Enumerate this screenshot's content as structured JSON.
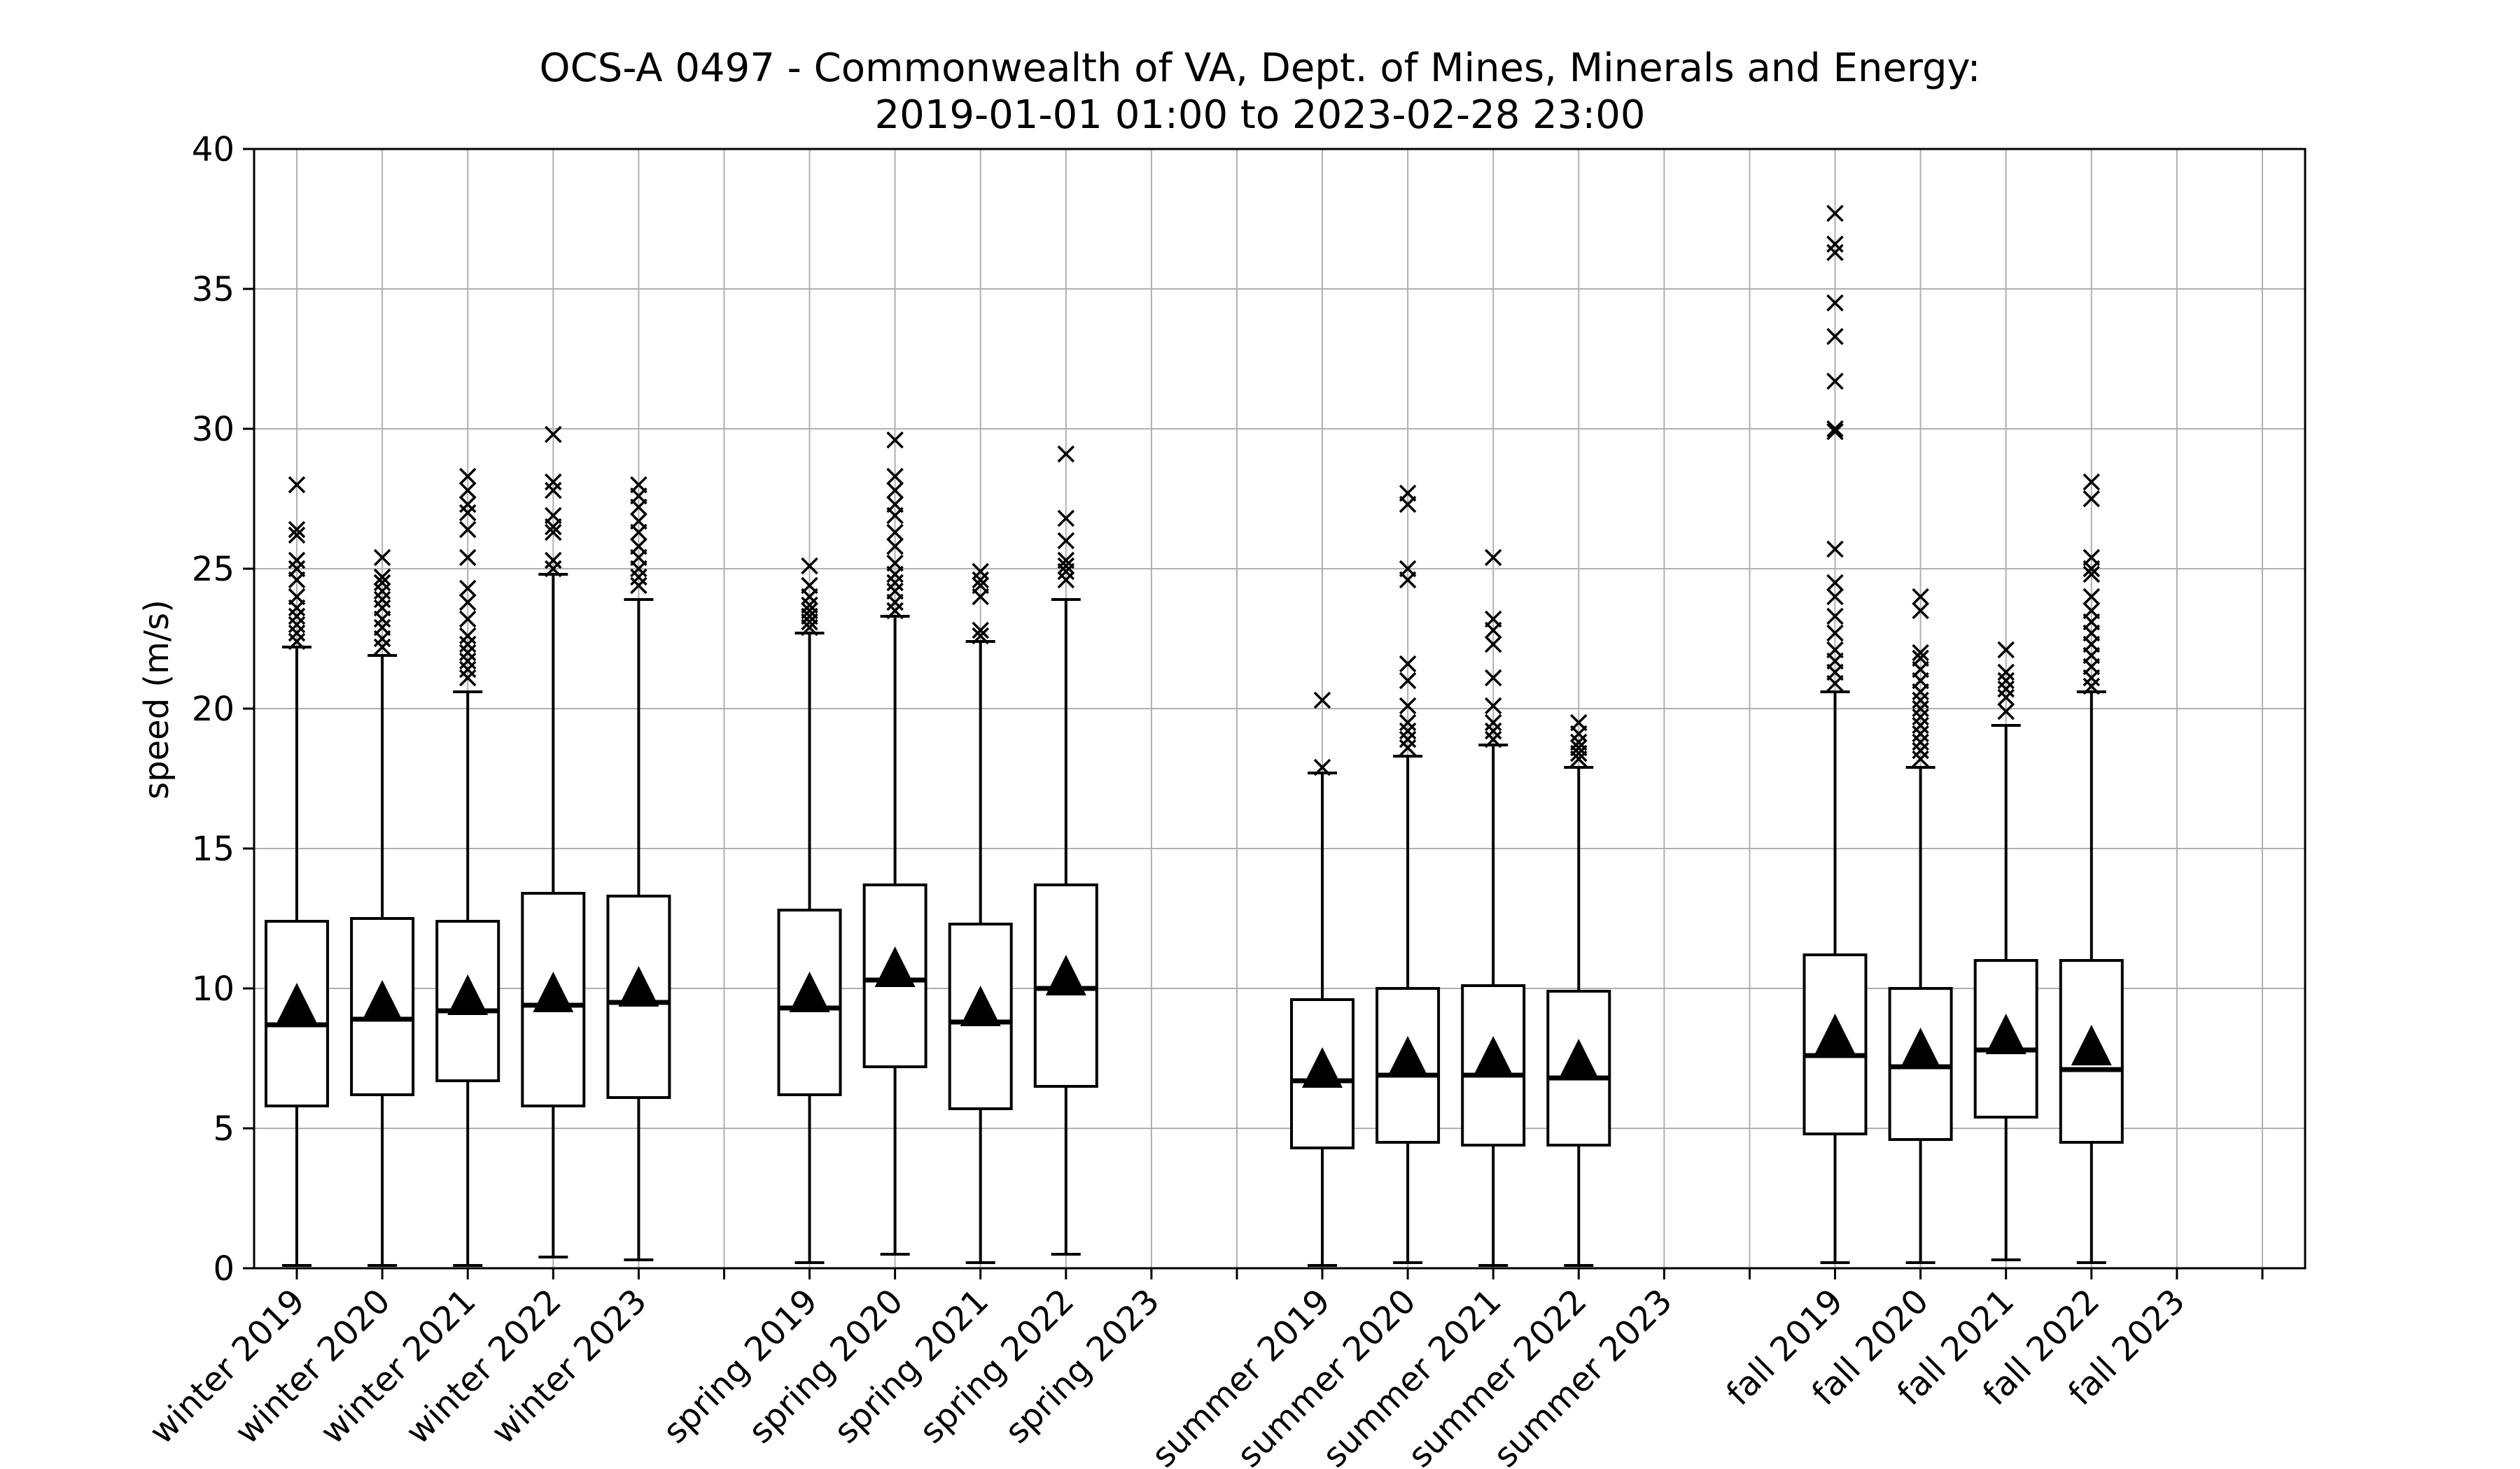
{
  "chart_data": {
    "type": "box",
    "title": "OCS-A 0497 - Commonwealth of VA, Dept. of Mines, Minerals and Energy:",
    "subtitle": "2019-01-01 01:00 to 2023-02-28 23:00",
    "xlabel": "",
    "ylabel": "speed (m/s)",
    "ylim": [
      0,
      40
    ],
    "yticks": [
      0,
      5,
      10,
      15,
      20,
      25,
      30,
      35,
      40
    ],
    "grid": true,
    "categories": [
      "winter 2019",
      "winter 2020",
      "winter 2021",
      "winter 2022",
      "winter 2023",
      "",
      "spring 2019",
      "spring 2020",
      "spring 2021",
      "spring 2022",
      "spring 2023",
      "",
      "summer 2019",
      "summer 2020",
      "summer 2021",
      "summer 2022",
      "summer 2023",
      "",
      "fall 2019",
      "fall 2020",
      "fall 2021",
      "fall 2022",
      "fall 2023",
      ""
    ],
    "boxes": [
      {
        "label": "winter 2019",
        "whisker_low": 0.1,
        "q1": 5.8,
        "median": 8.7,
        "q3": 12.4,
        "whisker_high": 22.2,
        "mean": 9.3,
        "outliers": [
          22.4,
          22.7,
          23.0,
          23.3,
          23.6,
          24.0,
          24.6,
          25.0,
          25.3,
          26.2,
          26.4,
          28.0
        ]
      },
      {
        "label": "winter 2020",
        "whisker_low": 0.1,
        "q1": 6.2,
        "median": 8.9,
        "q3": 12.5,
        "whisker_high": 21.9,
        "mean": 9.4,
        "outliers": [
          22.2,
          22.5,
          22.9,
          23.2,
          23.6,
          23.9,
          24.2,
          24.5,
          24.7,
          25.4
        ]
      },
      {
        "label": "winter 2021",
        "whisker_low": 0.1,
        "q1": 6.7,
        "median": 9.2,
        "q3": 12.4,
        "whisker_high": 20.6,
        "mean": 9.6,
        "outliers": [
          21.1,
          21.4,
          21.7,
          22.0,
          22.3,
          22.6,
          23.2,
          23.8,
          24.3,
          25.4,
          26.4,
          27.0,
          27.3,
          27.8,
          28.3
        ]
      },
      {
        "label": "winter 2022",
        "whisker_low": 0.4,
        "q1": 5.8,
        "median": 9.4,
        "q3": 13.4,
        "whisker_high": 24.8,
        "mean": 9.7,
        "outliers": [
          25.0,
          25.3,
          26.3,
          26.5,
          26.9,
          27.8,
          28.1,
          29.8
        ]
      },
      {
        "label": "winter 2023",
        "whisker_low": 0.3,
        "q1": 6.1,
        "median": 9.5,
        "q3": 13.3,
        "whisker_high": 23.9,
        "mean": 9.9,
        "outliers": [
          24.4,
          24.7,
          25.0,
          25.4,
          25.8,
          26.3,
          26.7,
          27.2,
          27.6,
          28.0
        ]
      },
      null,
      {
        "label": "spring 2019",
        "whisker_low": 0.2,
        "q1": 6.2,
        "median": 9.3,
        "q3": 12.8,
        "whisker_high": 22.7,
        "mean": 9.7,
        "outliers": [
          22.9,
          23.1,
          23.3,
          23.5,
          23.7,
          24.0,
          24.4,
          25.1
        ]
      },
      {
        "label": "spring 2020",
        "whisker_low": 0.5,
        "q1": 7.2,
        "median": 10.3,
        "q3": 13.7,
        "whisker_high": 23.3,
        "mean": 10.6,
        "outliers": [
          23.5,
          23.8,
          24.2,
          24.5,
          24.8,
          25.2,
          25.8,
          26.3,
          26.9,
          27.3,
          27.8,
          28.3,
          29.6
        ]
      },
      {
        "label": "spring 2021",
        "whisker_low": 0.2,
        "q1": 5.7,
        "median": 8.8,
        "q3": 12.3,
        "whisker_high": 22.4,
        "mean": 9.2,
        "outliers": [
          22.6,
          22.8,
          24.0,
          24.4,
          24.6,
          24.9
        ]
      },
      {
        "label": "spring 2022",
        "whisker_low": 0.5,
        "q1": 6.5,
        "median": 10.0,
        "q3": 13.7,
        "whisker_high": 23.9,
        "mean": 10.3,
        "outliers": [
          24.6,
          24.9,
          25.1,
          25.3,
          26.0,
          26.8,
          29.1
        ]
      },
      null,
      null,
      {
        "label": "summer 2019",
        "whisker_low": 0.1,
        "q1": 4.3,
        "median": 6.7,
        "q3": 9.6,
        "whisker_high": 17.7,
        "mean": 7.0,
        "outliers": [
          17.9,
          20.3
        ]
      },
      {
        "label": "summer 2020",
        "whisker_low": 0.2,
        "q1": 4.5,
        "median": 6.9,
        "q3": 10.0,
        "whisker_high": 18.3,
        "mean": 7.4,
        "outliers": [
          18.6,
          18.9,
          19.2,
          19.5,
          20.1,
          21.0,
          21.6,
          24.6,
          25.0,
          27.3,
          27.7
        ]
      },
      {
        "label": "summer 2021",
        "whisker_low": 0.1,
        "q1": 4.4,
        "median": 6.9,
        "q3": 10.1,
        "whisker_high": 18.7,
        "mean": 7.4,
        "outliers": [
          18.9,
          19.2,
          19.5,
          20.1,
          21.1,
          22.3,
          22.8,
          23.2,
          25.4
        ]
      },
      {
        "label": "summer 2022",
        "whisker_low": 0.1,
        "q1": 4.4,
        "median": 6.8,
        "q3": 9.9,
        "whisker_high": 17.9,
        "mean": 7.3,
        "outliers": [
          18.2,
          18.4,
          18.6,
          18.8,
          19.1,
          19.5
        ]
      },
      null,
      null,
      {
        "label": "fall 2019",
        "whisker_low": 0.2,
        "q1": 4.8,
        "median": 7.6,
        "q3": 11.2,
        "whisker_high": 20.6,
        "mean": 8.2,
        "outliers": [
          20.9,
          21.3,
          21.7,
          22.1,
          22.7,
          23.3,
          24.0,
          24.5,
          25.7,
          29.9,
          30.0,
          31.7,
          33.3,
          34.5,
          36.3,
          36.6,
          37.7
        ]
      },
      {
        "label": "fall 2020",
        "whisker_low": 0.2,
        "q1": 4.6,
        "median": 7.2,
        "q3": 10.0,
        "whisker_high": 17.9,
        "mean": 7.7,
        "outliers": [
          18.2,
          18.5,
          18.8,
          19.1,
          19.4,
          19.7,
          20.0,
          20.3,
          20.6,
          21.0,
          21.4,
          21.8,
          22.0,
          23.5,
          24.0
        ]
      },
      {
        "label": "fall 2021",
        "whisker_low": 0.3,
        "q1": 5.4,
        "median": 7.8,
        "q3": 11.0,
        "whisker_high": 19.4,
        "mean": 8.2,
        "outliers": [
          19.9,
          20.4,
          20.7,
          21.0,
          21.3,
          22.1
        ]
      },
      {
        "label": "fall 2022",
        "whisker_low": 0.2,
        "q1": 4.5,
        "median": 7.1,
        "q3": 11.0,
        "whisker_high": 20.6,
        "mean": 7.8,
        "outliers": [
          20.8,
          21.1,
          21.5,
          21.9,
          22.3,
          22.7,
          23.1,
          23.5,
          24.0,
          24.8,
          25.0,
          25.4,
          27.5,
          28.1
        ]
      },
      null,
      null
    ]
  }
}
